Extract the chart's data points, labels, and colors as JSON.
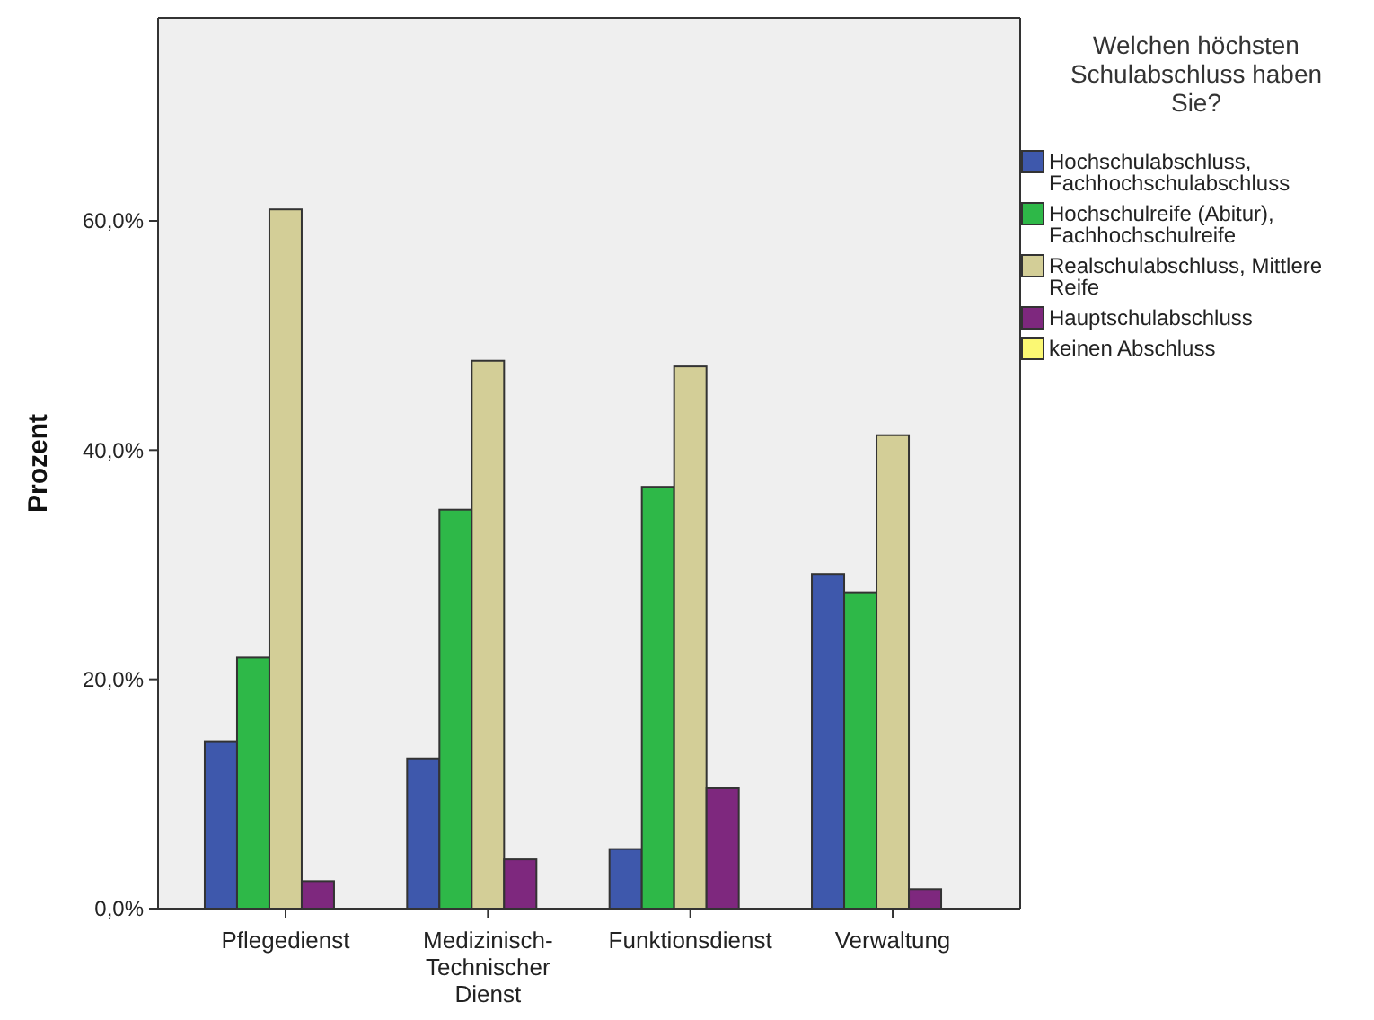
{
  "chart_data": {
    "type": "bar",
    "ylabel": "Prozent",
    "legend_title": "Welchen höchsten Schulabschluss haben Sie?",
    "legend": "right",
    "categories": [
      "Pflegedienst",
      "Medizinisch-Technischer Dienst",
      "Funktionsdienst",
      "Verwaltung"
    ],
    "ylim": [
      0,
      77.7
    ],
    "yticks": [
      {
        "value": 0,
        "label": "0,0%"
      },
      {
        "value": 20,
        "label": "20,0%"
      },
      {
        "value": 40,
        "label": "40,0%"
      },
      {
        "value": 60,
        "label": "60,0%"
      }
    ],
    "grid": false,
    "series": [
      {
        "name": "Hochschulabschluss, Fachhochschulabschluss",
        "color": "#3e58ac",
        "values": [
          14.6,
          13.1,
          5.2,
          29.2
        ]
      },
      {
        "name": "Hochschulreife (Abitur), Fachhochschulreife",
        "color": "#2eb848",
        "values": [
          21.9,
          34.8,
          36.8,
          27.6
        ]
      },
      {
        "name": "Realschulabschluss, Mittlere Reife",
        "color": "#d3ce97",
        "values": [
          61.0,
          47.8,
          47.3,
          41.3
        ]
      },
      {
        "name": "Hauptschulabschluss",
        "color": "#7e287e",
        "values": [
          2.4,
          4.3,
          10.5,
          1.7
        ]
      },
      {
        "name": "keinen Abschluss",
        "color": "#fbf873",
        "values": [
          0,
          0,
          0,
          0
        ]
      }
    ]
  }
}
